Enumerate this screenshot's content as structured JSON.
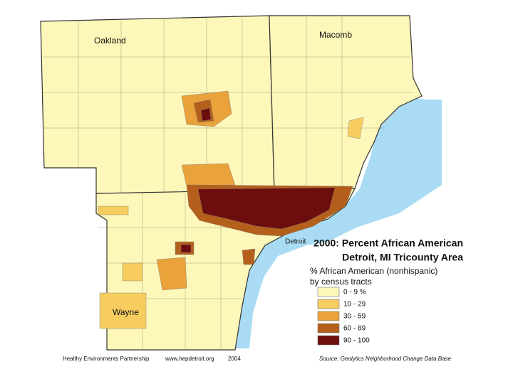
{
  "map": {
    "title": [
      "2000: Percent African American",
      "Detroit, MI Tricounty Area"
    ],
    "counties": [
      {
        "label": "Oakland"
      },
      {
        "label": "Macomb"
      },
      {
        "label": "Wayne"
      }
    ],
    "city_label": "Detroit",
    "legend": {
      "title": [
        "% African American (nonhispanic)",
        "by census tracts"
      ],
      "classes": [
        {
          "label": "0 - 9 %",
          "color": "#fdf7b9"
        },
        {
          "label": "10 - 29",
          "color": "#f7cd5f"
        },
        {
          "label": "30 - 59",
          "color": "#eaa23b"
        },
        {
          "label": "60 - 89",
          "color": "#b4601c"
        },
        {
          "label": "90 - 100",
          "color": "#6d0d0d"
        }
      ]
    }
  },
  "footer": {
    "left": [
      "Healthy Environments Partnership",
      "www.hepdetroit.org",
      "2004"
    ],
    "source": "Source:  Geolytics Neighborhood Change Data Base"
  }
}
